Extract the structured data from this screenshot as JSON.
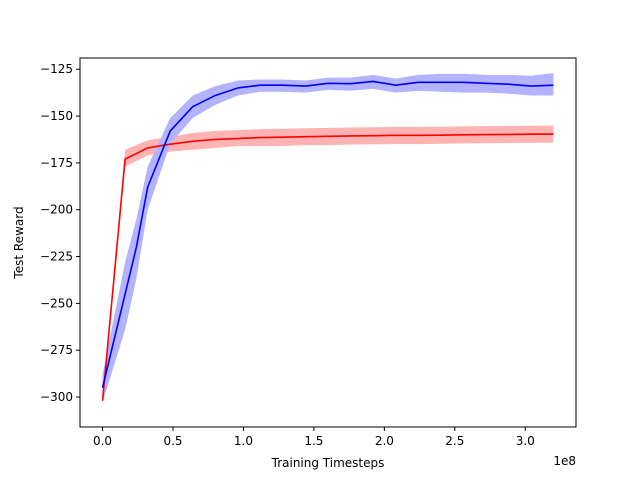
{
  "chart_data": {
    "type": "line",
    "xlabel": "Training Timesteps",
    "ylabel": "Test Reward",
    "x_offset_label": "1e8",
    "xlim": [
      -0.16,
      3.36
    ],
    "ylim": [
      -316,
      -119
    ],
    "x_ticks": [
      0.0,
      0.5,
      1.0,
      1.5,
      2.0,
      2.5,
      3.0
    ],
    "x_tick_labels": [
      "0.0",
      "0.5",
      "1.0",
      "1.5",
      "2.0",
      "2.5",
      "3.0"
    ],
    "y_ticks": [
      -125,
      -150,
      -175,
      -200,
      -225,
      -250,
      -275,
      -300
    ],
    "y_tick_labels": [
      "−125",
      "−150",
      "−175",
      "−200",
      "−225",
      "−250",
      "−275",
      "−300"
    ],
    "grid": false,
    "series": [
      {
        "color": "#ff0000",
        "band_color": "#ffb3b3",
        "points": [
          {
            "x": 0.0,
            "y": -302,
            "lo": -302,
            "hi": -302
          },
          {
            "x": 0.16,
            "y": -173,
            "lo": -177,
            "hi": -168
          },
          {
            "x": 0.32,
            "y": -167,
            "lo": -171,
            "hi": -163
          },
          {
            "x": 0.48,
            "y": -165,
            "lo": -169,
            "hi": -161
          },
          {
            "x": 0.64,
            "y": -163.5,
            "lo": -168,
            "hi": -159
          },
          {
            "x": 0.8,
            "y": -162.5,
            "lo": -167,
            "hi": -158
          },
          {
            "x": 0.96,
            "y": -162,
            "lo": -166,
            "hi": -157.5
          },
          {
            "x": 1.12,
            "y": -161.5,
            "lo": -166,
            "hi": -157
          },
          {
            "x": 1.28,
            "y": -161.3,
            "lo": -166,
            "hi": -156.8
          },
          {
            "x": 1.44,
            "y": -161,
            "lo": -165.5,
            "hi": -156.5
          },
          {
            "x": 1.6,
            "y": -160.8,
            "lo": -165.5,
            "hi": -156.3
          },
          {
            "x": 1.76,
            "y": -160.6,
            "lo": -165.2,
            "hi": -156.1
          },
          {
            "x": 1.92,
            "y": -160.5,
            "lo": -165.1,
            "hi": -156
          },
          {
            "x": 2.08,
            "y": -160.3,
            "lo": -165,
            "hi": -155.8
          },
          {
            "x": 2.24,
            "y": -160.3,
            "lo": -165,
            "hi": -155.8
          },
          {
            "x": 2.4,
            "y": -160.2,
            "lo": -164.8,
            "hi": -155.7
          },
          {
            "x": 2.56,
            "y": -160,
            "lo": -164.6,
            "hi": -155.5
          },
          {
            "x": 2.72,
            "y": -159.9,
            "lo": -164.5,
            "hi": -155.4
          },
          {
            "x": 2.88,
            "y": -159.8,
            "lo": -164.4,
            "hi": -155.3
          },
          {
            "x": 3.04,
            "y": -159.7,
            "lo": -164.3,
            "hi": -155.2
          },
          {
            "x": 3.2,
            "y": -159.6,
            "lo": -164.2,
            "hi": -155.1
          }
        ]
      },
      {
        "color": "#0000ff",
        "band_color": "#b3b3ff",
        "points": [
          {
            "x": 0.0,
            "y": -295,
            "lo": -303,
            "hi": -288
          },
          {
            "x": 0.16,
            "y": -245,
            "lo": -264,
            "hi": -228
          },
          {
            "x": 0.24,
            "y": -220,
            "lo": -237,
            "hi": -205
          },
          {
            "x": 0.32,
            "y": -188,
            "lo": -200,
            "hi": -177
          },
          {
            "x": 0.48,
            "y": -158,
            "lo": -165,
            "hi": -151
          },
          {
            "x": 0.64,
            "y": -145,
            "lo": -151,
            "hi": -139
          },
          {
            "x": 0.8,
            "y": -139,
            "lo": -144,
            "hi": -134
          },
          {
            "x": 0.96,
            "y": -135,
            "lo": -139,
            "hi": -131
          },
          {
            "x": 1.12,
            "y": -133.5,
            "lo": -137,
            "hi": -130.5
          },
          {
            "x": 1.28,
            "y": -133.5,
            "lo": -137,
            "hi": -130.5
          },
          {
            "x": 1.44,
            "y": -134,
            "lo": -137.5,
            "hi": -131
          },
          {
            "x": 1.6,
            "y": -132.5,
            "lo": -136,
            "hi": -129.5
          },
          {
            "x": 1.76,
            "y": -132.7,
            "lo": -136.5,
            "hi": -129.5
          },
          {
            "x": 1.92,
            "y": -131.5,
            "lo": -135.5,
            "hi": -128
          },
          {
            "x": 2.08,
            "y": -133.5,
            "lo": -137.5,
            "hi": -130
          },
          {
            "x": 2.24,
            "y": -132,
            "lo": -136.5,
            "hi": -128
          },
          {
            "x": 2.4,
            "y": -132,
            "lo": -137,
            "hi": -127.5
          },
          {
            "x": 2.56,
            "y": -132,
            "lo": -137.5,
            "hi": -127.5
          },
          {
            "x": 2.72,
            "y": -132.5,
            "lo": -137.5,
            "hi": -128
          },
          {
            "x": 2.88,
            "y": -133,
            "lo": -138,
            "hi": -128
          },
          {
            "x": 3.04,
            "y": -134,
            "lo": -139,
            "hi": -128.5
          },
          {
            "x": 3.2,
            "y": -133.5,
            "lo": -139,
            "hi": -127
          }
        ]
      }
    ]
  }
}
